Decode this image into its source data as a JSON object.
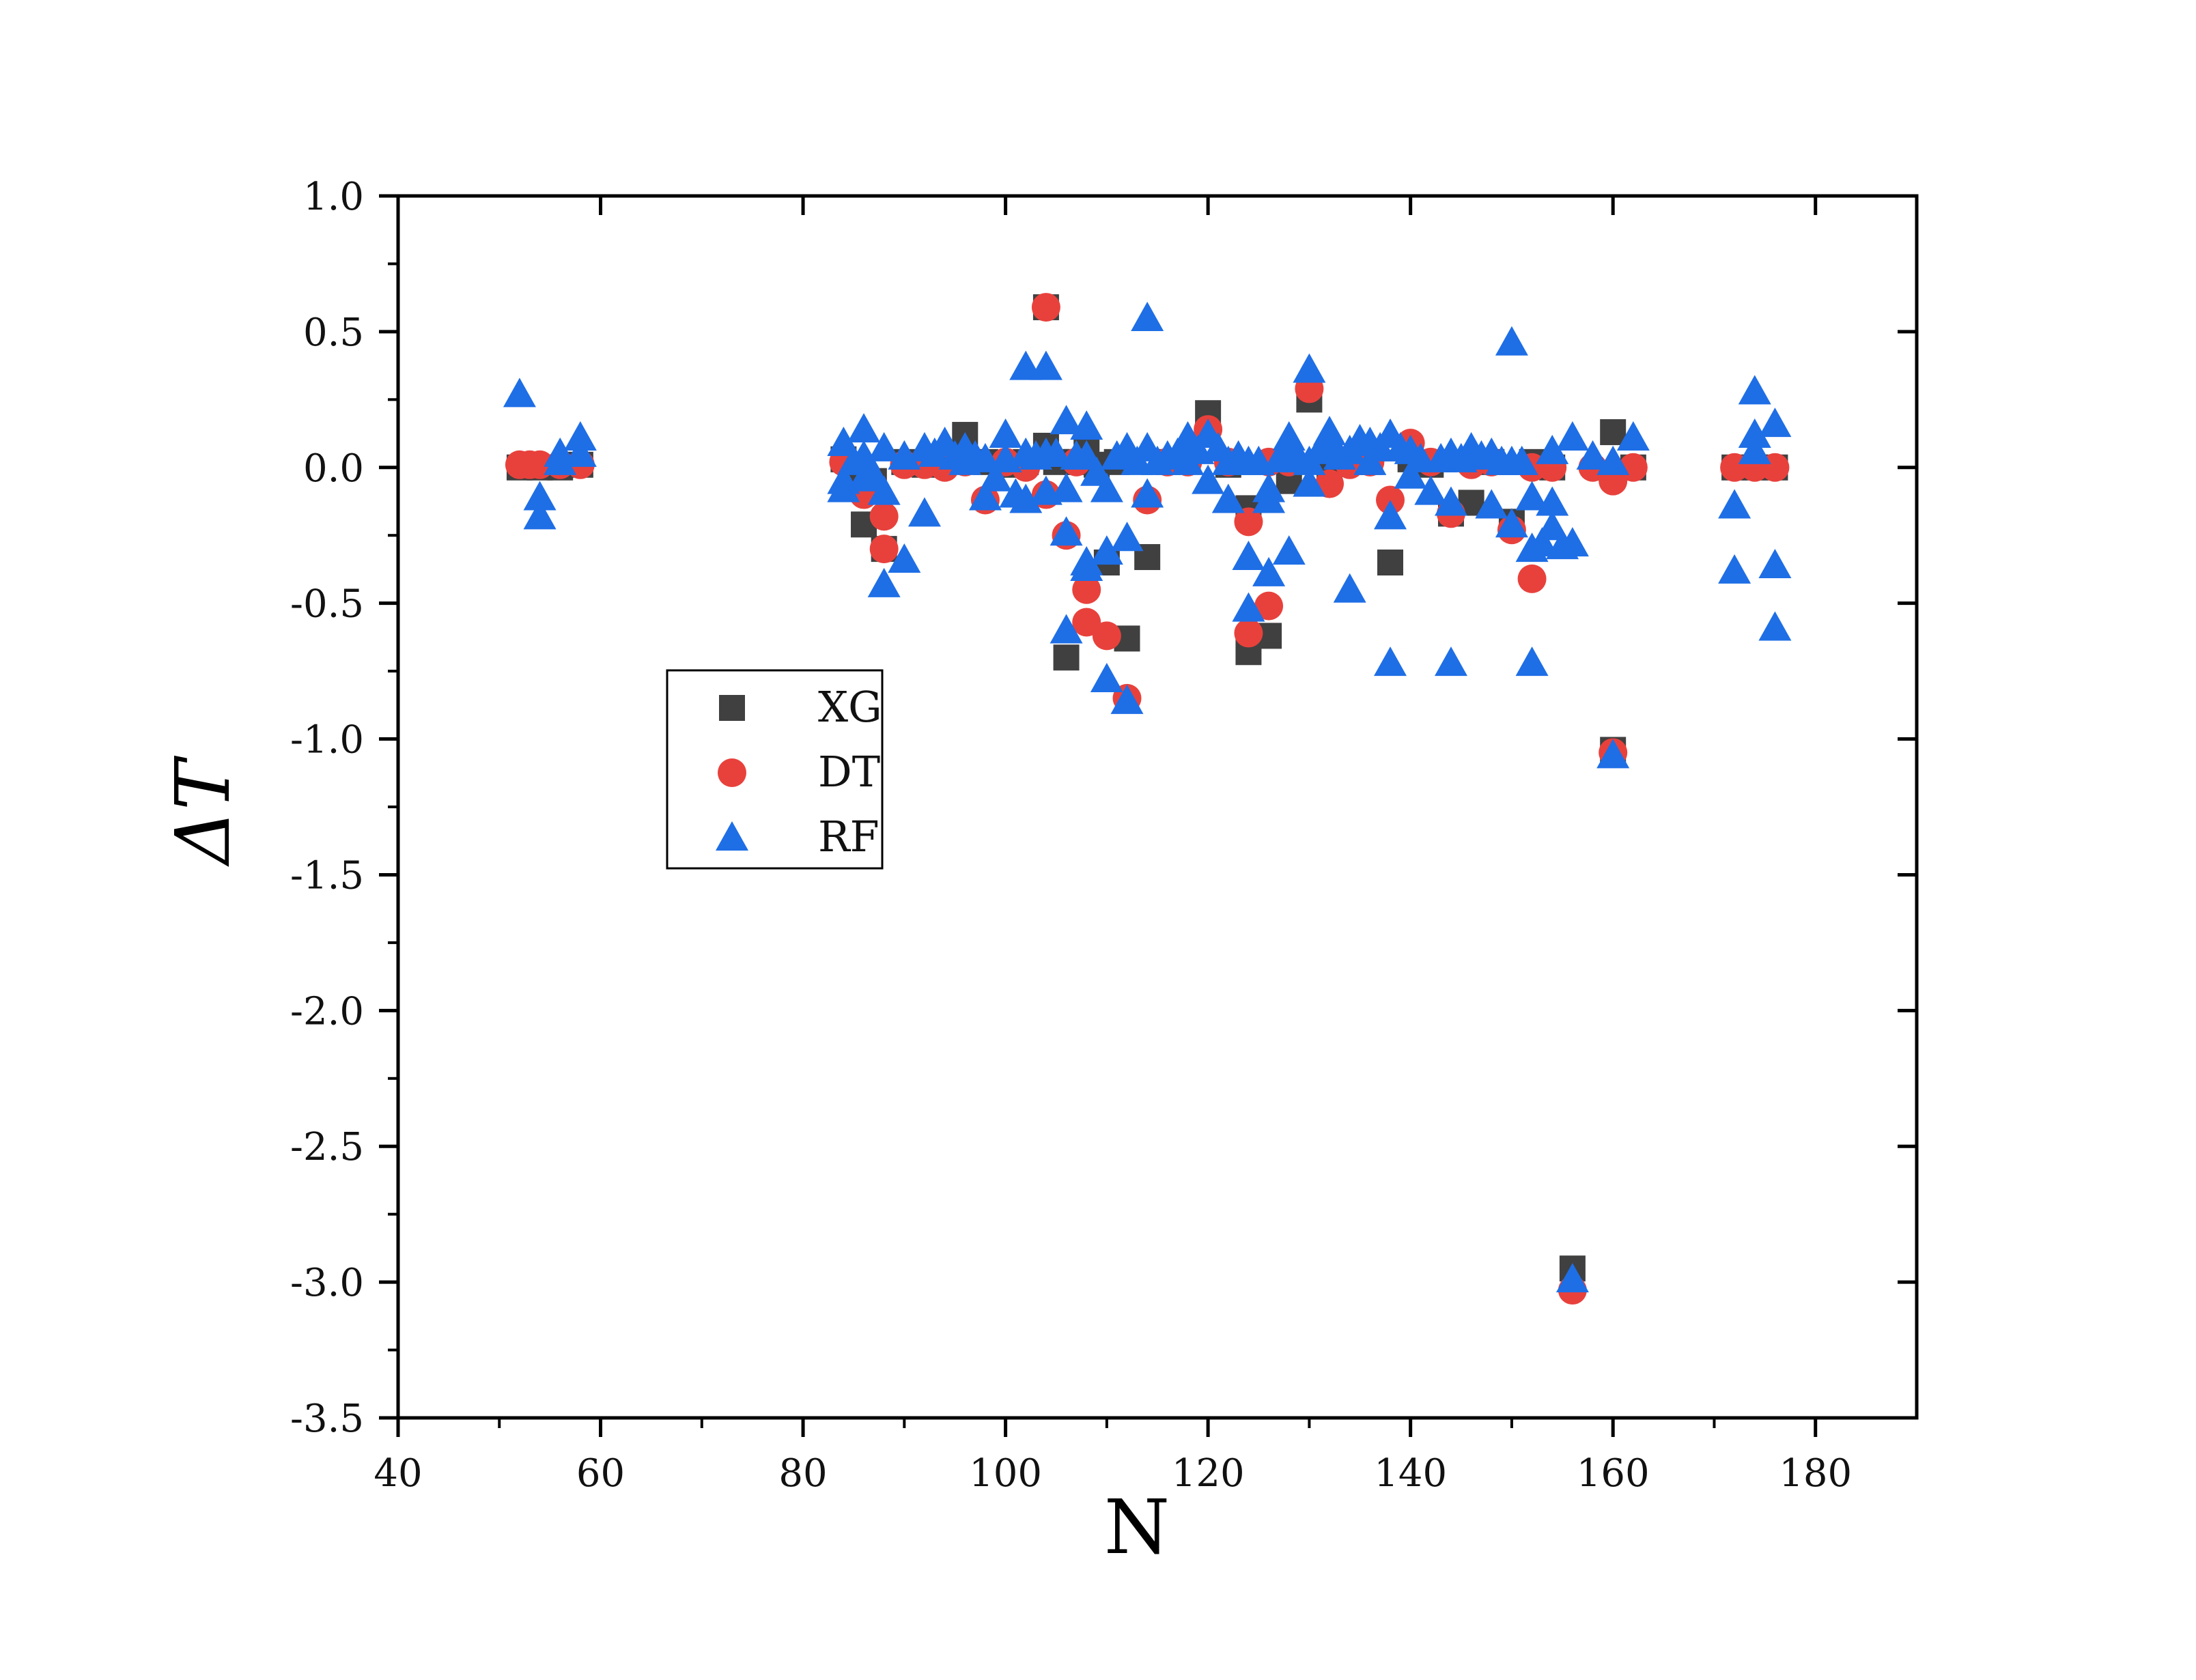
{
  "chart_data": {
    "type": "scatter",
    "xlabel": "N",
    "ylabel": "ΔT",
    "xlim": [
      40,
      190
    ],
    "ylim": [
      -3.5,
      1.0
    ],
    "xticks": [
      40,
      60,
      80,
      100,
      120,
      140,
      160,
      180
    ],
    "xtick_labels": [
      "40",
      "60",
      "80",
      "100",
      "120",
      "140",
      "160",
      "180"
    ],
    "yticks": [
      1.0,
      0.5,
      0.0,
      -0.5,
      -1.0,
      -1.5,
      -2.0,
      -2.5,
      -3.0,
      -3.5
    ],
    "ytick_labels": [
      "1.0",
      "0.5",
      "0.0",
      "-0.5",
      "-1.0",
      "-1.5",
      "-2.0",
      "-2.5",
      "-3.0",
      "-3.5"
    ],
    "grid": false,
    "legend_position": "left-middle",
    "series": [
      {
        "name": "XG",
        "marker": "square",
        "color": "#404040",
        "points": [
          [
            52,
            0.0
          ],
          [
            54,
            0.0
          ],
          [
            56,
            0.0
          ],
          [
            58,
            0.01
          ],
          [
            84,
            0.03
          ],
          [
            85,
            -0.02
          ],
          [
            86,
            -0.21
          ],
          [
            87,
            -0.05
          ],
          [
            88,
            -0.3
          ],
          [
            90,
            0.02
          ],
          [
            92,
            0.01
          ],
          [
            94,
            0.03
          ],
          [
            96,
            0.12
          ],
          [
            98,
            0.02
          ],
          [
            100,
            0.01
          ],
          [
            102,
            0.02
          ],
          [
            104,
            0.08
          ],
          [
            104,
            0.59
          ],
          [
            105,
            0.02
          ],
          [
            106,
            -0.7
          ],
          [
            107,
            0.02
          ],
          [
            108,
            0.06
          ],
          [
            109,
            0.01
          ],
          [
            110,
            -0.35
          ],
          [
            111,
            0.02
          ],
          [
            112,
            -0.63
          ],
          [
            114,
            -0.33
          ],
          [
            116,
            0.02
          ],
          [
            118,
            0.03
          ],
          [
            120,
            0.2
          ],
          [
            122,
            0.01
          ],
          [
            124,
            -0.68
          ],
          [
            124,
            -0.15
          ],
          [
            126,
            -0.62
          ],
          [
            128,
            -0.05
          ],
          [
            130,
            0.25
          ],
          [
            132,
            0.01
          ],
          [
            134,
            0.02
          ],
          [
            136,
            0.02
          ],
          [
            138,
            -0.35
          ],
          [
            140,
            0.03
          ],
          [
            142,
            0.01
          ],
          [
            144,
            -0.17
          ],
          [
            146,
            -0.13
          ],
          [
            148,
            0.02
          ],
          [
            150,
            -0.2
          ],
          [
            152,
            0.02
          ],
          [
            154,
            0.0
          ],
          [
            156,
            -2.95
          ],
          [
            160,
            0.13
          ],
          [
            160,
            -1.04
          ],
          [
            162,
            0.0
          ],
          [
            172,
            0.0
          ],
          [
            174,
            0.0
          ],
          [
            176,
            0.0
          ]
        ]
      },
      {
        "name": "DT",
        "marker": "circle",
        "color": "#e8413c",
        "points": [
          [
            52,
            0.01
          ],
          [
            53,
            0.01
          ],
          [
            54,
            0.01
          ],
          [
            56,
            0.01
          ],
          [
            58,
            0.01
          ],
          [
            84,
            0.02
          ],
          [
            86,
            -0.1
          ],
          [
            88,
            -0.18
          ],
          [
            88,
            -0.3
          ],
          [
            90,
            0.01
          ],
          [
            92,
            0.01
          ],
          [
            94,
            0.0
          ],
          [
            96,
            0.02
          ],
          [
            98,
            -0.12
          ],
          [
            100,
            0.02
          ],
          [
            102,
            0.0
          ],
          [
            104,
            0.59
          ],
          [
            104,
            -0.1
          ],
          [
            106,
            -0.25
          ],
          [
            107,
            0.02
          ],
          [
            108,
            -0.45
          ],
          [
            108,
            -0.57
          ],
          [
            110,
            -0.62
          ],
          [
            112,
            -0.85
          ],
          [
            114,
            -0.12
          ],
          [
            116,
            0.02
          ],
          [
            118,
            0.02
          ],
          [
            120,
            0.14
          ],
          [
            122,
            0.02
          ],
          [
            124,
            -0.2
          ],
          [
            124,
            -0.61
          ],
          [
            126,
            -0.51
          ],
          [
            126,
            0.02
          ],
          [
            128,
            0.02
          ],
          [
            130,
            0.29
          ],
          [
            132,
            -0.06
          ],
          [
            134,
            0.01
          ],
          [
            136,
            0.02
          ],
          [
            138,
            -0.12
          ],
          [
            140,
            0.09
          ],
          [
            142,
            0.02
          ],
          [
            144,
            -0.17
          ],
          [
            146,
            0.01
          ],
          [
            148,
            0.02
          ],
          [
            150,
            -0.23
          ],
          [
            152,
            -0.41
          ],
          [
            152,
            0.0
          ],
          [
            154,
            0.0
          ],
          [
            156,
            -3.03
          ],
          [
            158,
            0.0
          ],
          [
            160,
            -0.05
          ],
          [
            160,
            -1.05
          ],
          [
            162,
            0.0
          ],
          [
            172,
            0.0
          ],
          [
            174,
            0.0
          ],
          [
            176,
            0.0
          ]
        ]
      },
      {
        "name": "RF",
        "marker": "triangle",
        "color": "#1e6ee6",
        "points": [
          [
            52,
            0.27
          ],
          [
            54,
            -0.11
          ],
          [
            54,
            -0.18
          ],
          [
            56,
            0.05
          ],
          [
            56,
            0.02
          ],
          [
            58,
            0.11
          ],
          [
            58,
            0.05
          ],
          [
            84,
            0.09
          ],
          [
            84,
            -0.05
          ],
          [
            84,
            -0.08
          ],
          [
            85,
            0.02
          ],
          [
            86,
            0.14
          ],
          [
            86,
            -0.04
          ],
          [
            86,
            0.04
          ],
          [
            87,
            -0.03
          ],
          [
            88,
            0.07
          ],
          [
            88,
            -0.09
          ],
          [
            88,
            -0.43
          ],
          [
            90,
            -0.34
          ],
          [
            90,
            0.04
          ],
          [
            92,
            -0.17
          ],
          [
            92,
            0.07
          ],
          [
            93,
            0.05
          ],
          [
            94,
            0.09
          ],
          [
            95,
            0.04
          ],
          [
            96,
            0.07
          ],
          [
            96,
            0.02
          ],
          [
            97,
            0.04
          ],
          [
            98,
            -0.11
          ],
          [
            98,
            0.03
          ],
          [
            99,
            -0.04
          ],
          [
            100,
            0.12
          ],
          [
            100,
            0.03
          ],
          [
            101,
            -0.1
          ],
          [
            102,
            0.37
          ],
          [
            102,
            0.05
          ],
          [
            102,
            -0.12
          ],
          [
            103,
            0.04
          ],
          [
            104,
            0.37
          ],
          [
            104,
            0.05
          ],
          [
            104,
            -0.09
          ],
          [
            105,
            0.05
          ],
          [
            106,
            0.17
          ],
          [
            106,
            -0.24
          ],
          [
            106,
            -0.6
          ],
          [
            106,
            -0.08
          ],
          [
            107,
            0.04
          ],
          [
            108,
            0.15
          ],
          [
            108,
            -0.37
          ],
          [
            108,
            -0.35
          ],
          [
            108,
            0.04
          ],
          [
            109,
            -0.02
          ],
          [
            110,
            -0.78
          ],
          [
            110,
            -0.31
          ],
          [
            110,
            -0.08
          ],
          [
            111,
            0.04
          ],
          [
            112,
            -0.86
          ],
          [
            112,
            -0.26
          ],
          [
            112,
            0.07
          ],
          [
            113,
            0.02
          ],
          [
            114,
            0.55
          ],
          [
            114,
            -0.1
          ],
          [
            114,
            0.07
          ],
          [
            115,
            0.02
          ],
          [
            116,
            0.04
          ],
          [
            117,
            0.05
          ],
          [
            118,
            0.11
          ],
          [
            118,
            0.02
          ],
          [
            119,
            0.06
          ],
          [
            120,
            0.12
          ],
          [
            120,
            -0.05
          ],
          [
            121,
            0.07
          ],
          [
            122,
            0.02
          ],
          [
            122,
            -0.12
          ],
          [
            123,
            0.04
          ],
          [
            124,
            -0.33
          ],
          [
            124,
            -0.52
          ],
          [
            124,
            0.02
          ],
          [
            125,
            0.02
          ],
          [
            126,
            -0.39
          ],
          [
            126,
            -0.12
          ],
          [
            126,
            -0.08
          ],
          [
            127,
            0.03
          ],
          [
            128,
            0.11
          ],
          [
            128,
            -0.31
          ],
          [
            128,
            0.06
          ],
          [
            129,
            0.03
          ],
          [
            130,
            0.36
          ],
          [
            130,
            -0.06
          ],
          [
            130,
            0.02
          ],
          [
            131,
            0.06
          ],
          [
            132,
            0.13
          ],
          [
            132,
            0.07
          ],
          [
            133,
            0.04
          ],
          [
            134,
            -0.45
          ],
          [
            134,
            0.06
          ],
          [
            135,
            0.1
          ],
          [
            136,
            0.09
          ],
          [
            136,
            0.02
          ],
          [
            137,
            0.07
          ],
          [
            138,
            -0.72
          ],
          [
            138,
            -0.18
          ],
          [
            138,
            0.12
          ],
          [
            139,
            0.07
          ],
          [
            140,
            0.06
          ],
          [
            140,
            -0.03
          ],
          [
            141,
            0.03
          ],
          [
            142,
            -0.09
          ],
          [
            143,
            0.03
          ],
          [
            144,
            -0.72
          ],
          [
            144,
            -0.13
          ],
          [
            144,
            0.05
          ],
          [
            145,
            0.03
          ],
          [
            146,
            0.07
          ],
          [
            147,
            0.04
          ],
          [
            148,
            -0.14
          ],
          [
            148,
            0.05
          ],
          [
            149,
            0.02
          ],
          [
            150,
            0.46
          ],
          [
            150,
            -0.21
          ],
          [
            150,
            0.02
          ],
          [
            151,
            0.02
          ],
          [
            152,
            -0.72
          ],
          [
            152,
            -0.3
          ],
          [
            152,
            -0.11
          ],
          [
            153,
            -0.28
          ],
          [
            154,
            -0.22
          ],
          [
            154,
            -0.13
          ],
          [
            154,
            0.06
          ],
          [
            155,
            -0.29
          ],
          [
            156,
            0.11
          ],
          [
            156,
            -0.28
          ],
          [
            156,
            -2.99
          ],
          [
            158,
            0.04
          ],
          [
            160,
            0.02
          ],
          [
            160,
            -1.06
          ],
          [
            162,
            0.11
          ],
          [
            172,
            -0.14
          ],
          [
            172,
            -0.38
          ],
          [
            174,
            0.28
          ],
          [
            174,
            0.12
          ],
          [
            174,
            0.06
          ],
          [
            176,
            0.16
          ],
          [
            176,
            -0.36
          ],
          [
            176,
            -0.59
          ]
        ]
      }
    ]
  }
}
